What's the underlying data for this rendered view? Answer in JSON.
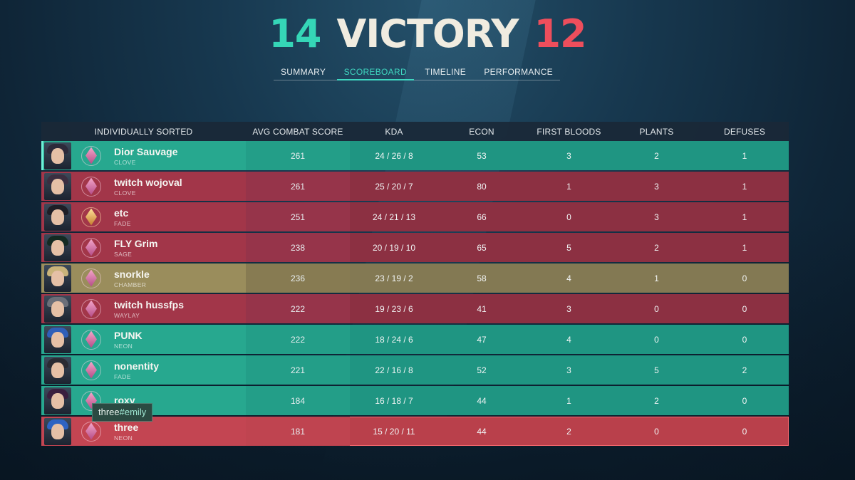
{
  "match": {
    "score_left": "14",
    "result": "VICTORY",
    "score_right": "12",
    "colors": {
      "win": "#35d6b7",
      "loss": "#ee4e5c",
      "accent": "#3fd7c0"
    }
  },
  "tabs": [
    "SUMMARY",
    "SCOREBOARD",
    "TIMELINE",
    "PERFORMANCE"
  ],
  "active_tab": "SCOREBOARD",
  "table": {
    "headers": [
      "INDIVIDUALLY SORTED",
      "AVG COMBAT SCORE",
      "KDA",
      "ECON",
      "FIRST BLOODS",
      "PLANTS",
      "DEFUSES"
    ],
    "rows": [
      {
        "name": "Dior Sauvage",
        "agent": "CLOVE",
        "acs": "261",
        "kda": "24 / 26 / 8",
        "econ": "53",
        "first_bloods": "3",
        "plants": "2",
        "defuses": "1",
        "team": "green",
        "rank_icon": "rank-gem-icon"
      },
      {
        "name": "twitch wojoval",
        "agent": "CLOVE",
        "acs": "261",
        "kda": "25 / 20 / 7",
        "econ": "80",
        "first_bloods": "1",
        "plants": "3",
        "defuses": "1",
        "team": "red",
        "rank_icon": "rank-gem-icon"
      },
      {
        "name": "etc",
        "agent": "FADE",
        "acs": "251",
        "kda": "24 / 21 / 13",
        "econ": "66",
        "first_bloods": "0",
        "plants": "3",
        "defuses": "1",
        "team": "red",
        "rank_icon": "rank-gold-icon"
      },
      {
        "name": "FLY Grim",
        "agent": "SAGE",
        "acs": "238",
        "kda": "20 / 19 / 10",
        "econ": "65",
        "first_bloods": "5",
        "plants": "2",
        "defuses": "1",
        "team": "red",
        "rank_icon": "rank-gem-icon"
      },
      {
        "name": "snorkle",
        "agent": "CHAMBER",
        "acs": "236",
        "kda": "23 / 19 / 2",
        "econ": "58",
        "first_bloods": "4",
        "plants": "1",
        "defuses": "0",
        "team": "gold",
        "rank_icon": "rank-gem-icon"
      },
      {
        "name": "twitch hussfps",
        "agent": "WAYLAY",
        "acs": "222",
        "kda": "19 / 23 / 6",
        "econ": "41",
        "first_bloods": "3",
        "plants": "0",
        "defuses": "0",
        "team": "red",
        "rank_icon": "rank-gem-icon"
      },
      {
        "name": "PUNK",
        "agent": "NEON",
        "acs": "222",
        "kda": "18 / 24 / 6",
        "econ": "47",
        "first_bloods": "4",
        "plants": "0",
        "defuses": "0",
        "team": "green",
        "rank_icon": "rank-gem-icon"
      },
      {
        "name": "nonentity",
        "agent": "FADE",
        "acs": "221",
        "kda": "22 / 16 / 8",
        "econ": "52",
        "first_bloods": "3",
        "plants": "5",
        "defuses": "2",
        "team": "green",
        "rank_icon": "rank-gem-icon"
      },
      {
        "name": "roxy",
        "agent": "",
        "acs": "184",
        "kda": "16 / 18 / 7",
        "econ": "44",
        "first_bloods": "1",
        "plants": "2",
        "defuses": "0",
        "team": "green",
        "rank_icon": "rank-gem-icon"
      },
      {
        "name": "three",
        "agent": "NEON",
        "acs": "181",
        "kda": "15 / 20 / 11",
        "econ": "44",
        "first_bloods": "2",
        "plants": "0",
        "defuses": "0",
        "team": "red",
        "rank_icon": "rank-gem-icon"
      }
    ]
  },
  "tooltip": {
    "name": "three",
    "tag": "#emily"
  }
}
